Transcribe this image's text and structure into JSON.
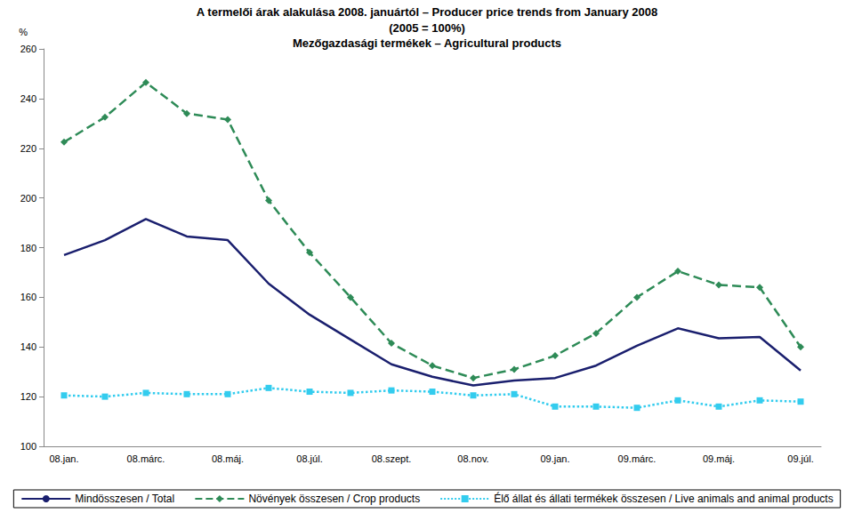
{
  "chart_data": {
    "type": "line",
    "title": "A termelői árak alakulása 2008. januártól – Producer price trends from January 2008",
    "subtitle": [
      "(2005 = 100%)",
      "Mezőgazdasági termékek – Agricultural products"
    ],
    "y_label": "%",
    "categories": [
      "08.jan.",
      null,
      "08.márc.",
      null,
      "08.máj.",
      null,
      "08.júl.",
      null,
      "08.szept.",
      null,
      "08.nov.",
      null,
      "09.jan.",
      null,
      "09.márc.",
      null,
      "09.máj.",
      null,
      "09.júl."
    ],
    "series": [
      {
        "name": "Mindösszesen / Total",
        "color": "#1a1f6e",
        "line_style": "solid",
        "marker": "none",
        "values": [
          177,
          183,
          191.5,
          184.5,
          183,
          165.5,
          153,
          143,
          133,
          128,
          124.5,
          126.5,
          127.5,
          132.5,
          140.5,
          147.5,
          143.5,
          144,
          130.5
        ]
      },
      {
        "name": "Növények összesen / Crop products",
        "color": "#2e8b57",
        "line_style": "dashed",
        "marker": "diamond",
        "values": [
          222.5,
          232.5,
          246.5,
          234,
          231.5,
          199,
          178,
          160,
          141.5,
          132.5,
          127.5,
          131,
          136.5,
          145.5,
          160,
          170.5,
          165,
          164,
          140
        ]
      },
      {
        "name": "Élő állat és állati termékek összesen / Live animals and animal products",
        "color": "#33ccee",
        "line_style": "dotted",
        "marker": "square",
        "values": [
          120.5,
          120,
          121.5,
          121,
          121,
          123.5,
          122,
          121.5,
          122.5,
          122,
          120.5,
          121,
          116,
          116,
          115.5,
          118.5,
          116,
          118.5,
          118
        ]
      }
    ],
    "ylim": [
      100,
      260
    ],
    "yticks": [
      100,
      120,
      140,
      160,
      180,
      200,
      220,
      240,
      260
    ],
    "grid": false,
    "legend": "bottom"
  }
}
